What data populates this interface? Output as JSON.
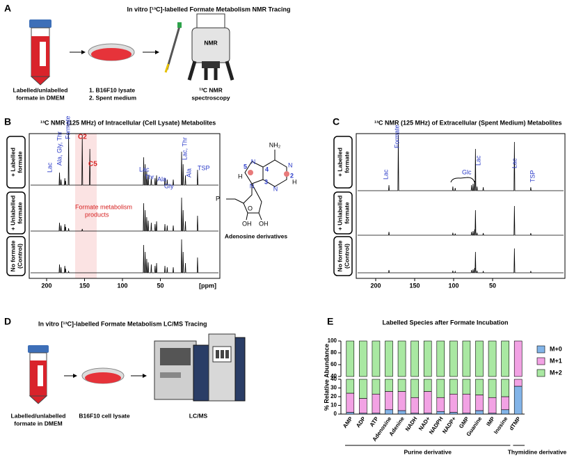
{
  "panel_a": {
    "label": "A",
    "title": "In vitro [¹³C]-labelled Formate Metabolism NMR Tracing",
    "tube_caption": [
      "Labelled/unlabelled",
      "formate in DMEM"
    ],
    "dish_caption": [
      "1. B16F10 lysate",
      "2. Spent medium"
    ],
    "machine_label": "NMR",
    "machine_caption": [
      "¹³C NMR",
      "spectroscopy"
    ]
  },
  "panel_b": {
    "label": "B",
    "title": "¹³C NMR (125 MHz) of Intracellular (Cell Lysate) Metabolites",
    "rows": [
      [
        "+ Labelled",
        "formate"
      ],
      [
        "+ Unlabelled",
        "formate"
      ],
      [
        "No formate",
        "(Control)"
      ]
    ],
    "xticks": [
      200,
      150,
      100,
      50
    ],
    "xunit": "[ppm]",
    "highlight": [
      "Formate metabolism",
      "products"
    ],
    "peak_labels": [
      "Lac",
      "Ala, Gly, Thr",
      "Formate",
      "C2",
      "C5",
      "Lac",
      "Thr",
      "Ala",
      "Gly",
      "Lac, Thr",
      "Ala",
      "TSP"
    ]
  },
  "structure": {
    "caption": "Adenosine derivatives",
    "atoms": [
      "NH₂",
      "N",
      "N",
      "N",
      "N",
      "5",
      "4",
      "3",
      "2",
      "H",
      "H",
      "P",
      "O",
      "OH",
      "OH"
    ]
  },
  "panel_c": {
    "label": "C",
    "title": "¹³C NMR (125 MHz) of Extracellular (Spent Medium) Metabolites",
    "rows": [
      [
        "+ Labelled",
        "formate"
      ],
      [
        "+ Unlabelled",
        "formate"
      ],
      [
        "No formate",
        "(Control)"
      ]
    ],
    "xticks": [
      200,
      150,
      100,
      50
    ],
    "peak_labels": [
      "Lac",
      "Formate",
      "Glc",
      "Lac",
      "Lac",
      "TSP"
    ]
  },
  "panel_d": {
    "label": "D",
    "title": "In vitro [¹³C]-labelled Formate Metabolism LC/MS Tracing",
    "tube_caption": [
      "Labelled/unlabelled",
      "formate in DMEM"
    ],
    "dish_caption": [
      "B16F10 cell lysate"
    ],
    "machine_caption": [
      "LC/MS"
    ]
  },
  "panel_e": {
    "label": "E"
  },
  "chart_data": {
    "type": "bar",
    "stacked": true,
    "title": "Labelled Species after Formate Incubation",
    "ylabel": "% Relative Abundance",
    "categories": [
      "AMP",
      "ADP",
      "ATP",
      "Adenosine",
      "Adenine",
      "NADH",
      "NAD+",
      "NADPH",
      "NADP+",
      "GMP",
      "Guanine",
      "IMP",
      "Inosine",
      "dTMP"
    ],
    "series": [
      {
        "name": "M+0",
        "color": "#82b4e8",
        "values": [
          2,
          1,
          1,
          5,
          4,
          1,
          1,
          3,
          2,
          1,
          4,
          1,
          5,
          32
        ]
      },
      {
        "name": "M+1",
        "color": "#f2a2e4",
        "values": [
          22,
          17,
          22,
          21,
          22,
          18,
          25,
          16,
          21,
          22,
          18,
          18,
          15,
          68
        ]
      },
      {
        "name": "M+2",
        "color": "#a9e8a2",
        "values": [
          76,
          82,
          77,
          74,
          74,
          81,
          74,
          81,
          77,
          77,
          78,
          81,
          80,
          0
        ]
      }
    ],
    "ylim": [
      0,
      100
    ],
    "ybreak": 40,
    "yticks": [
      0,
      10,
      20,
      30,
      40,
      60,
      80,
      100
    ],
    "legend": "right",
    "group_labels": [
      "Purine derivative",
      "Thymidine derivative"
    ]
  }
}
